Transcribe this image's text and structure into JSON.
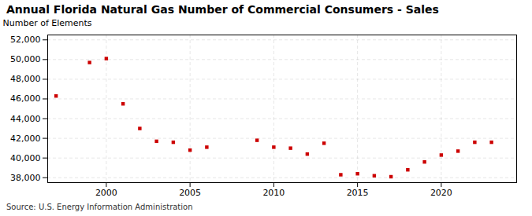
{
  "chart_data": {
    "type": "scatter",
    "title": "Annual Florida Natural Gas Number of Commercial Consumers - Sales",
    "ylabel": "Number of Elements",
    "source": "Source: U.S. Energy Information Administration",
    "x": [
      1997,
      1999,
      2000,
      2001,
      2002,
      2003,
      2004,
      2005,
      2006,
      2009,
      2010,
      2011,
      2012,
      2013,
      2014,
      2015,
      2016,
      2017,
      2018,
      2019,
      2020,
      2021,
      2022,
      2023
    ],
    "values": [
      46300,
      49700,
      50100,
      45500,
      43000,
      41700,
      41600,
      40800,
      41100,
      41800,
      41100,
      41000,
      40400,
      41500,
      38300,
      38400,
      38200,
      38100,
      38800,
      39600,
      40300,
      40700,
      41600,
      41600
    ],
    "color": "#cc0000",
    "marker": "square",
    "xlim": [
      1996.5,
      2024.5
    ],
    "xticks": [
      2000,
      2005,
      2010,
      2015,
      2020
    ],
    "ylim": [
      37500,
      52500
    ],
    "yticks": [
      {
        "value": 38000,
        "label": "38,000"
      },
      {
        "value": 40000,
        "label": "40,000"
      },
      {
        "value": 42000,
        "label": "42,000"
      },
      {
        "value": 44000,
        "label": "44,000"
      },
      {
        "value": 46000,
        "label": "46,000"
      },
      {
        "value": 48000,
        "label": "48,000"
      },
      {
        "value": 50000,
        "label": "50,000"
      },
      {
        "value": 52000,
        "label": "52,000"
      }
    ],
    "grid": true
  }
}
